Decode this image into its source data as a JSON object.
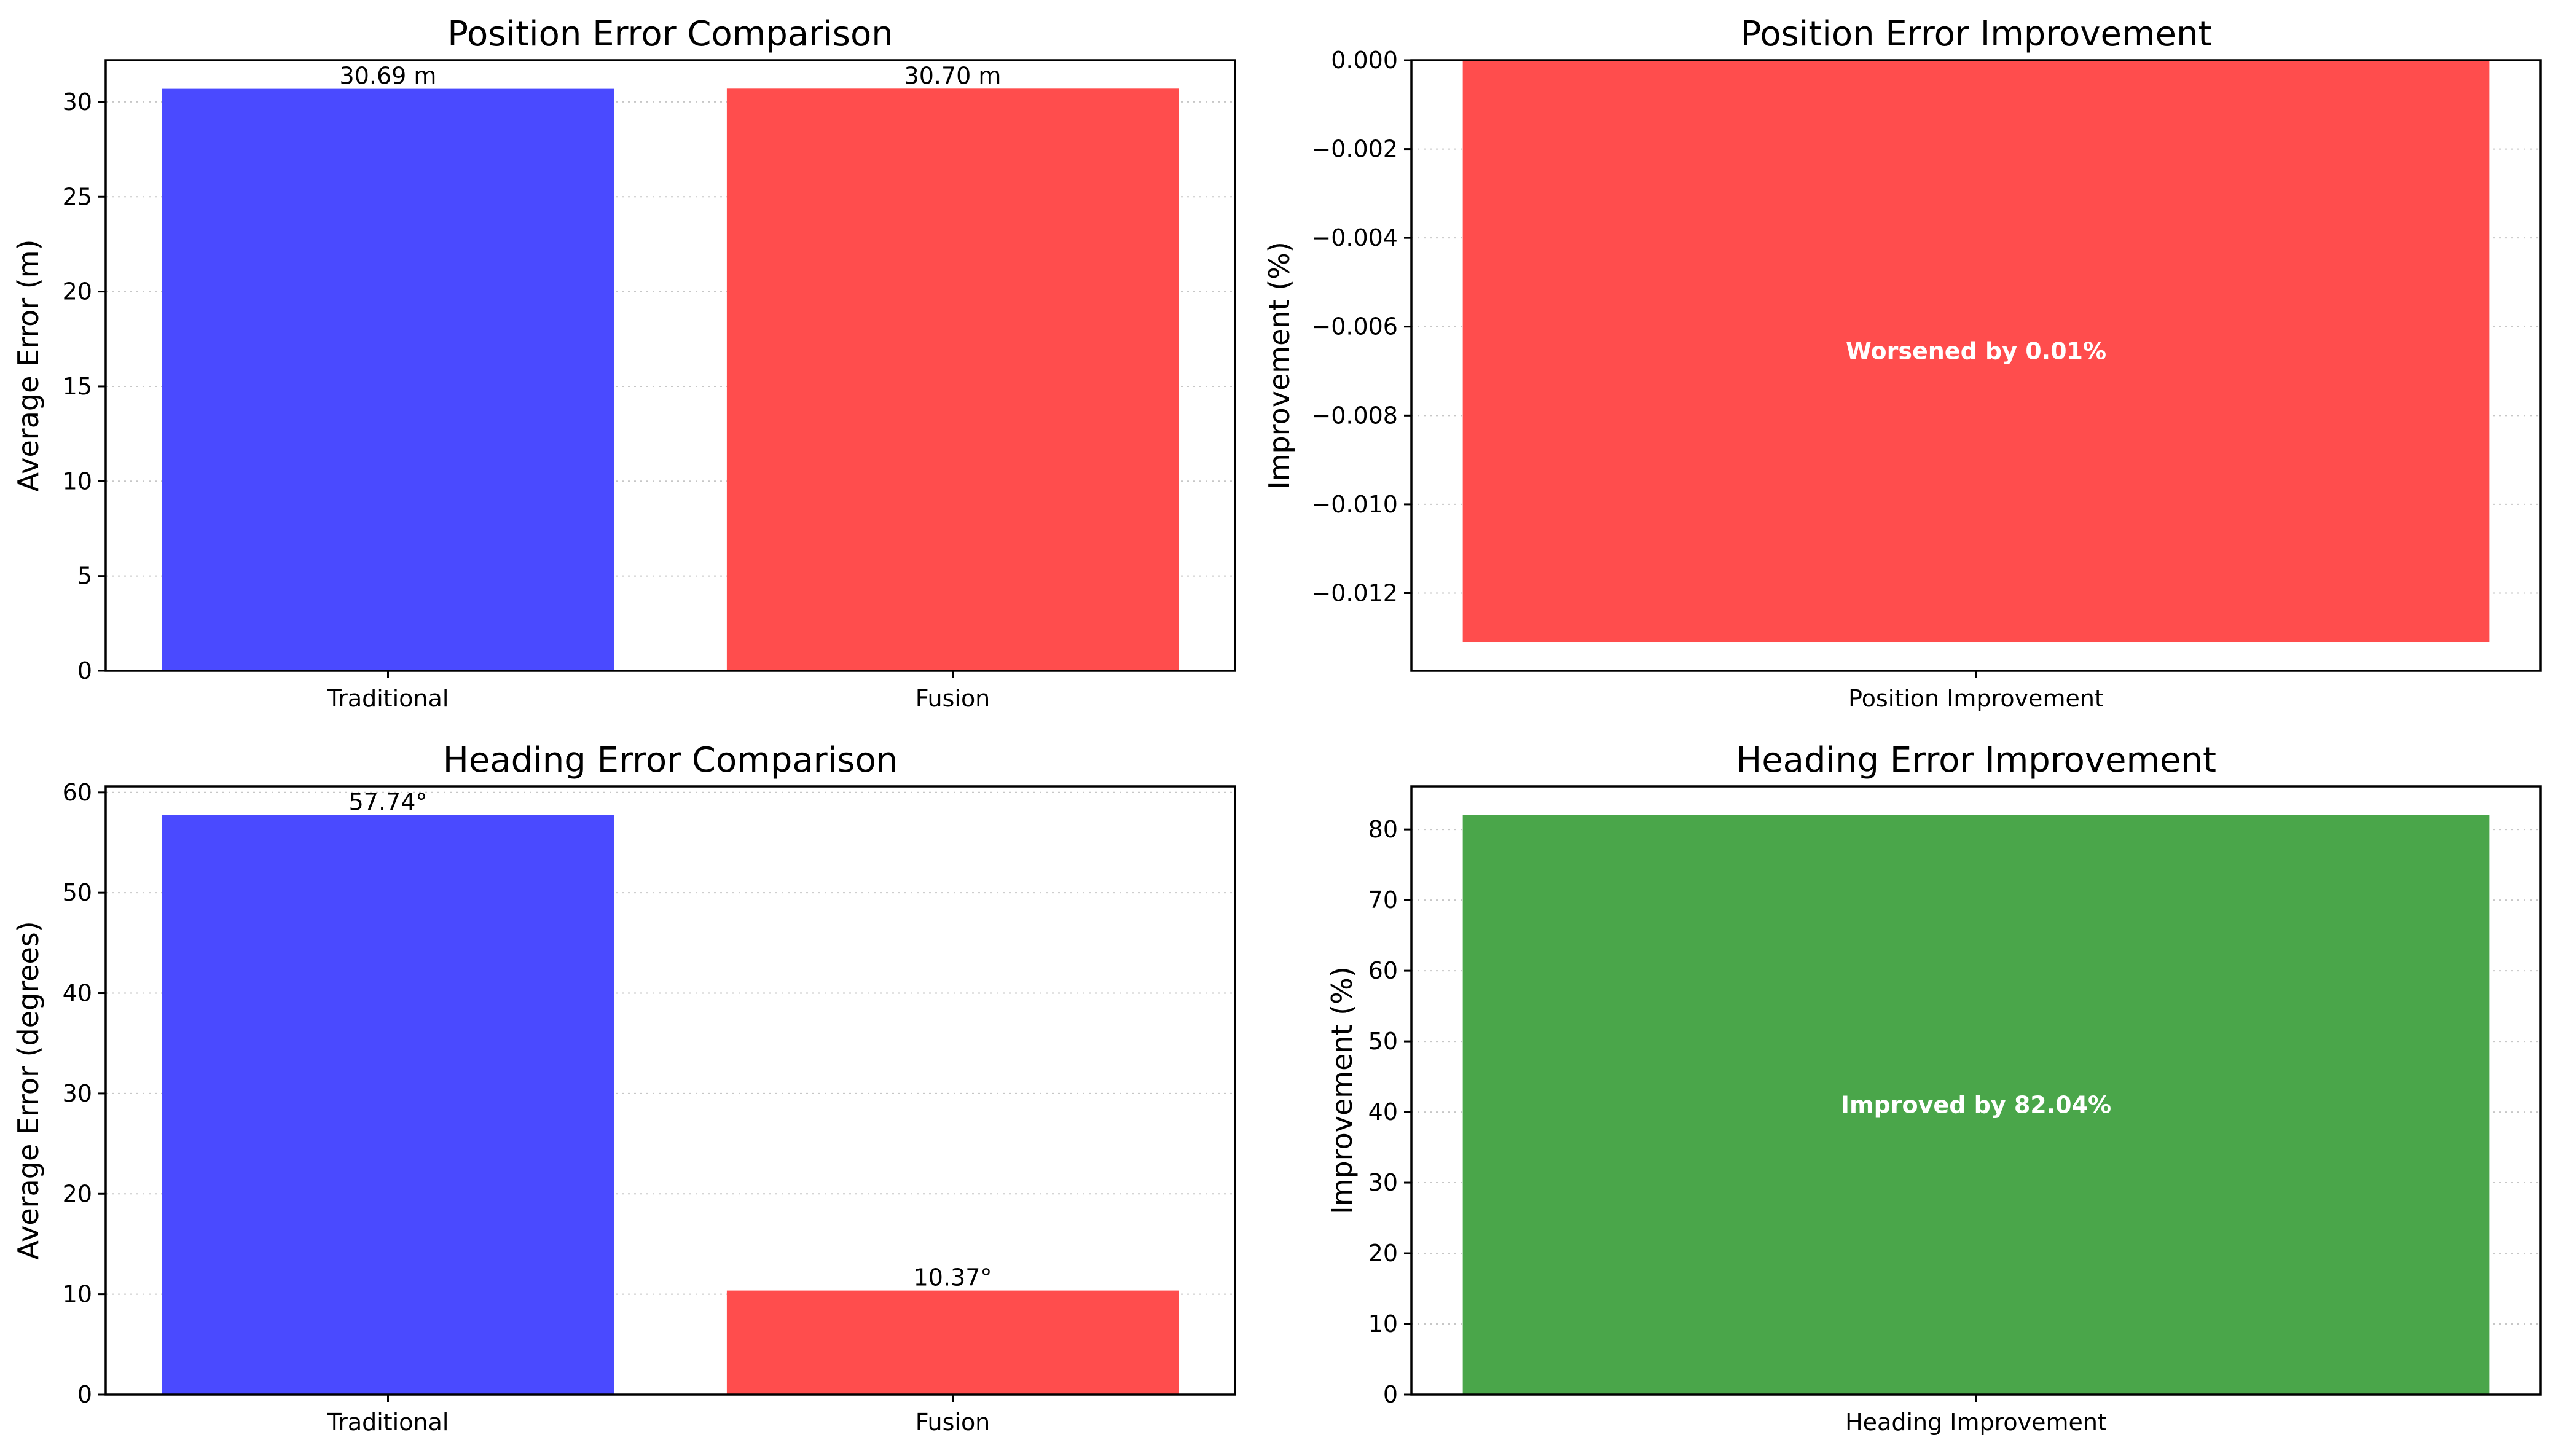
{
  "chart_data": [
    {
      "type": "bar",
      "title": "Position Error Comparison",
      "xlabel": "",
      "ylabel": "Average Error (m)",
      "categories": [
        "Traditional",
        "Fusion"
      ],
      "values": [
        30.69,
        30.7
      ],
      "data_labels": [
        "30.69 m",
        "30.70 m"
      ],
      "colors": [
        "#4a4aff",
        "#ff4d4d"
      ],
      "ylim": [
        0,
        32.2
      ],
      "yticks": [
        0,
        5,
        10,
        15,
        20,
        25,
        30
      ],
      "ytick_labels": [
        "0",
        "5",
        "10",
        "15",
        "20",
        "25",
        "30"
      ],
      "grid": "y-dotted"
    },
    {
      "type": "bar",
      "title": "Position Error Improvement",
      "xlabel": "",
      "ylabel": "Improvement (%)",
      "categories": [
        "Position Improvement"
      ],
      "values": [
        -0.0131
      ],
      "inner_label": "Worsened by 0.01%",
      "colors": [
        "#ff4d4d"
      ],
      "ylim": [
        -0.01375,
        0.0
      ],
      "yticks": [
        -0.012,
        -0.01,
        -0.008,
        -0.006,
        -0.004,
        -0.002,
        0.0
      ],
      "ytick_labels": [
        "−0.012",
        "−0.010",
        "−0.008",
        "−0.006",
        "−0.004",
        "−0.002",
        "0.000"
      ],
      "grid": "y-dotted"
    },
    {
      "type": "bar",
      "title": "Heading Error Comparison",
      "xlabel": "",
      "ylabel": "Average Error (degrees)",
      "categories": [
        "Traditional",
        "Fusion"
      ],
      "values": [
        57.74,
        10.37
      ],
      "data_labels": [
        "57.74°",
        "10.37°"
      ],
      "colors": [
        "#4a4aff",
        "#ff4d4d"
      ],
      "ylim": [
        0,
        60.6
      ],
      "yticks": [
        0,
        10,
        20,
        30,
        40,
        50,
        60
      ],
      "ytick_labels": [
        "0",
        "10",
        "20",
        "30",
        "40",
        "50",
        "60"
      ],
      "grid": "y-dotted"
    },
    {
      "type": "bar",
      "title": "Heading Error Improvement",
      "xlabel": "",
      "ylabel": "Improvement (%)",
      "categories": [
        "Heading Improvement"
      ],
      "values": [
        82.04
      ],
      "inner_label": "Improved by 82.04%",
      "colors": [
        "#4aa64a"
      ],
      "ylim": [
        0,
        86.1
      ],
      "yticks": [
        0,
        10,
        20,
        30,
        40,
        50,
        60,
        70,
        80
      ],
      "ytick_labels": [
        "0",
        "10",
        "20",
        "30",
        "40",
        "50",
        "60",
        "70",
        "80"
      ],
      "grid": "y-dotted"
    }
  ]
}
